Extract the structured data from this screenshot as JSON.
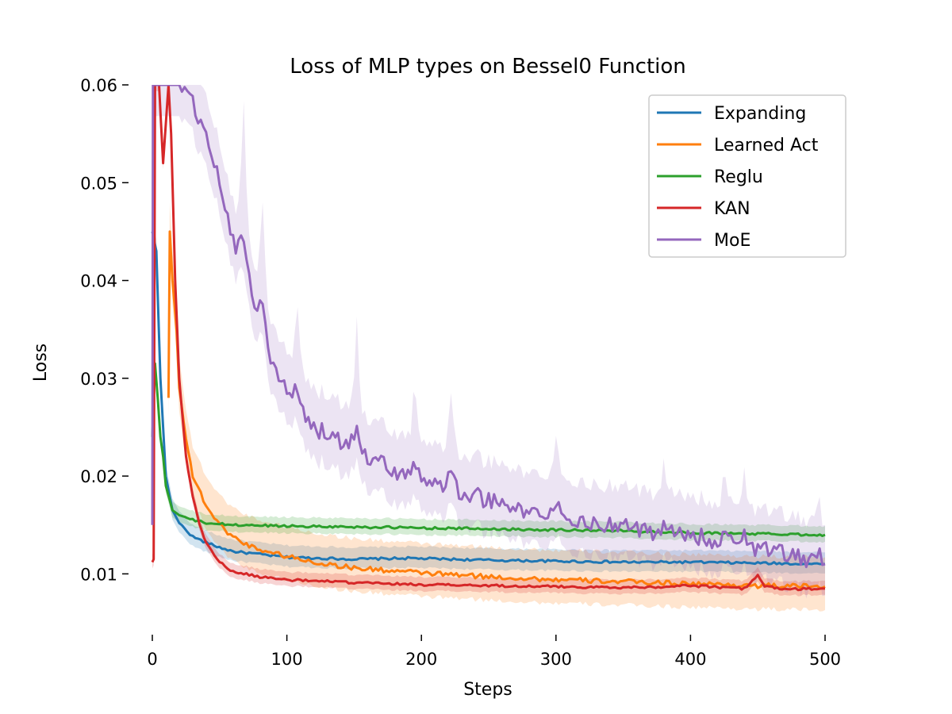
{
  "chart_data": {
    "type": "line",
    "title": "Loss of MLP types on Bessel0 Function",
    "xlabel": "Steps",
    "ylabel": "Loss",
    "xlim": [
      0,
      500
    ],
    "ylim": [
      0.005,
      0.06
    ],
    "xticks": [
      0,
      100,
      200,
      300,
      400,
      500
    ],
    "xtick_labels": [
      "0",
      "100",
      "200",
      "300",
      "400",
      "500"
    ],
    "yticks": [
      0.01,
      0.02,
      0.03,
      0.04,
      0.05,
      0.06
    ],
    "ytick_labels": [
      "0.01",
      "0.02",
      "0.03",
      "0.04",
      "0.05",
      "0.06"
    ],
    "grid": false,
    "legend_position": "top-right",
    "series": [
      {
        "name": "Expanding",
        "color": "#1f77b4",
        "band": 0.0012,
        "points": [
          [
            0,
            0.045
          ],
          [
            3,
            0.043
          ],
          [
            6,
            0.03
          ],
          [
            10,
            0.02
          ],
          [
            15,
            0.0165
          ],
          [
            20,
            0.0152
          ],
          [
            30,
            0.0138
          ],
          [
            40,
            0.0132
          ],
          [
            50,
            0.0127
          ],
          [
            60,
            0.0123
          ],
          [
            80,
            0.012
          ],
          [
            100,
            0.0117
          ],
          [
            150,
            0.0115
          ],
          [
            190,
            0.0116
          ],
          [
            250,
            0.0114
          ],
          [
            300,
            0.0113
          ],
          [
            350,
            0.0112
          ],
          [
            400,
            0.0112
          ],
          [
            450,
            0.0111
          ],
          [
            500,
            0.011
          ]
        ],
        "spikes": []
      },
      {
        "name": "Learned Act",
        "color": "#ff7f0e",
        "band": 0.003,
        "points": [
          [
            12,
            0.028
          ],
          [
            13,
            0.045
          ],
          [
            15,
            0.04
          ],
          [
            18,
            0.035
          ],
          [
            20,
            0.029
          ],
          [
            25,
            0.024
          ],
          [
            30,
            0.02
          ],
          [
            40,
            0.017
          ],
          [
            50,
            0.015
          ],
          [
            60,
            0.0138
          ],
          [
            70,
            0.013
          ],
          [
            80,
            0.0125
          ],
          [
            100,
            0.0118
          ],
          [
            120,
            0.0112
          ],
          [
            150,
            0.0106
          ],
          [
            200,
            0.0101
          ],
          [
            250,
            0.0097
          ],
          [
            300,
            0.0094
          ],
          [
            350,
            0.0092
          ],
          [
            400,
            0.009
          ],
          [
            450,
            0.0088
          ],
          [
            500,
            0.0087
          ]
        ],
        "spikes": []
      },
      {
        "name": "Reglu",
        "color": "#2ca02c",
        "band": 0.0009,
        "points": [
          [
            0,
            0.024
          ],
          [
            2,
            0.0315
          ],
          [
            4,
            0.028
          ],
          [
            6,
            0.024
          ],
          [
            8,
            0.022
          ],
          [
            10,
            0.019
          ],
          [
            15,
            0.0165
          ],
          [
            20,
            0.016
          ],
          [
            30,
            0.0155
          ],
          [
            40,
            0.0152
          ],
          [
            60,
            0.015
          ],
          [
            100,
            0.0149
          ],
          [
            150,
            0.0148
          ],
          [
            200,
            0.0147
          ],
          [
            250,
            0.0146
          ],
          [
            300,
            0.0145
          ],
          [
            350,
            0.0144
          ],
          [
            400,
            0.0142
          ],
          [
            450,
            0.0141
          ],
          [
            500,
            0.014
          ]
        ],
        "spikes": []
      },
      {
        "name": "KAN",
        "color": "#d62728",
        "band": 0.0008,
        "points": [
          [
            0,
            0.0112
          ],
          [
            1,
            0.0115
          ],
          [
            2,
            0.06
          ],
          [
            5,
            0.06
          ],
          [
            8,
            0.052
          ],
          [
            12,
            0.06
          ],
          [
            14,
            0.055
          ],
          [
            17,
            0.04
          ],
          [
            20,
            0.03
          ],
          [
            25,
            0.022
          ],
          [
            30,
            0.018
          ],
          [
            35,
            0.015
          ],
          [
            40,
            0.0132
          ],
          [
            50,
            0.0112
          ],
          [
            60,
            0.0102
          ],
          [
            80,
            0.0097
          ],
          [
            100,
            0.0094
          ],
          [
            150,
            0.0091
          ],
          [
            200,
            0.0089
          ],
          [
            250,
            0.0088
          ],
          [
            300,
            0.0087
          ],
          [
            350,
            0.0086
          ],
          [
            380,
            0.0087
          ],
          [
            400,
            0.0088
          ],
          [
            440,
            0.0085
          ],
          [
            450,
            0.0098
          ],
          [
            455,
            0.0088
          ],
          [
            470,
            0.0084
          ],
          [
            500,
            0.0085
          ]
        ],
        "spikes": []
      },
      {
        "name": "MoE",
        "color": "#9467bd",
        "band": 0.004,
        "points": [
          [
            0,
            0.015
          ],
          [
            0.5,
            0.06
          ],
          [
            1,
            0.06
          ],
          [
            18,
            0.06
          ],
          [
            20,
            0.06
          ],
          [
            30,
            0.058
          ],
          [
            40,
            0.055
          ],
          [
            50,
            0.05
          ],
          [
            60,
            0.044
          ],
          [
            70,
            0.04
          ],
          [
            80,
            0.036
          ],
          [
            90,
            0.031
          ],
          [
            100,
            0.0285
          ],
          [
            110,
            0.0265
          ],
          [
            120,
            0.025
          ],
          [
            140,
            0.0235
          ],
          [
            160,
            0.022
          ],
          [
            180,
            0.0205
          ],
          [
            200,
            0.0195
          ],
          [
            220,
            0.0188
          ],
          [
            240,
            0.018
          ],
          [
            260,
            0.017
          ],
          [
            280,
            0.0163
          ],
          [
            300,
            0.0158
          ],
          [
            320,
            0.0154
          ],
          [
            340,
            0.015
          ],
          [
            360,
            0.0145
          ],
          [
            380,
            0.0142
          ],
          [
            400,
            0.014
          ],
          [
            420,
            0.0134
          ],
          [
            440,
            0.0128
          ],
          [
            460,
            0.0123
          ],
          [
            480,
            0.0118
          ],
          [
            500,
            0.011
          ]
        ],
        "spikes": [
          [
            68,
            0.0065
          ],
          [
            82,
            0.004
          ],
          [
            108,
            0.003
          ],
          [
            152,
            0.0045
          ],
          [
            195,
            0.003
          ],
          [
            222,
            0.0025
          ],
          [
            300,
            0.002
          ],
          [
            380,
            0.0015
          ],
          [
            425,
            0.0015
          ],
          [
            440,
            0.0015
          ],
          [
            495,
            0.0012
          ]
        ]
      }
    ]
  }
}
